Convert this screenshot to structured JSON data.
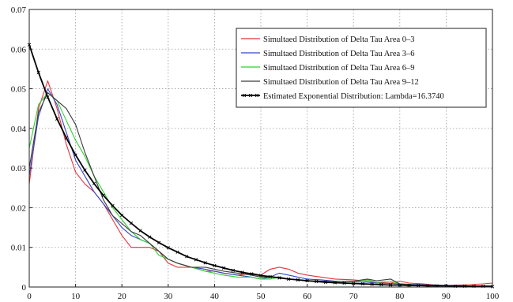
{
  "chart_data": {
    "type": "line",
    "title": "",
    "xlabel": "",
    "ylabel": "",
    "xlim": [
      0,
      100
    ],
    "ylim": [
      0,
      0.07
    ],
    "grid": true,
    "legend_position": "top-right",
    "x_ticks": [
      "0",
      "10",
      "20",
      "30",
      "40",
      "50",
      "60",
      "70",
      "80",
      "90",
      "100"
    ],
    "y_ticks": [
      "0",
      "0.01",
      "0.02",
      "0.03",
      "0.04",
      "0.05",
      "0.06",
      "0.07"
    ],
    "series": [
      {
        "name": "Simultaed Distribution of Delta Tau Area 0–3",
        "color": "#e8313a",
        "marker": "",
        "x": [
          0,
          2,
          4,
          6,
          8,
          10,
          12,
          14,
          16,
          18,
          20,
          22,
          24,
          26,
          28,
          30,
          32,
          35,
          38,
          40,
          42,
          45,
          48,
          50,
          52,
          54,
          56,
          58,
          60,
          63,
          66,
          70,
          73,
          75,
          78,
          80,
          82,
          85,
          88,
          90,
          92,
          95,
          98,
          100
        ],
        "y": [
          0.026,
          0.045,
          0.052,
          0.045,
          0.036,
          0.029,
          0.026,
          0.024,
          0.021,
          0.017,
          0.013,
          0.01,
          0.01,
          0.01,
          0.009,
          0.006,
          0.005,
          0.005,
          0.004,
          0.004,
          0.0035,
          0.003,
          0.0035,
          0.003,
          0.0045,
          0.005,
          0.0045,
          0.0035,
          0.003,
          0.0025,
          0.002,
          0.0018,
          0.0015,
          0.0012,
          0.001,
          0.0015,
          0.001,
          0.0008,
          0.0005,
          0.0004,
          0.0005,
          0.0006,
          0.0008,
          0.001
        ]
      },
      {
        "name": "Simultaed Distribution of Delta Tau Area 3–6",
        "color": "#3446c8",
        "marker": "",
        "x": [
          0,
          2,
          4,
          6,
          8,
          10,
          12,
          14,
          16,
          18,
          20,
          22,
          24,
          26,
          28,
          30,
          32,
          35,
          38,
          40,
          42,
          45,
          48,
          50,
          52,
          54,
          56,
          58,
          60,
          63,
          66,
          70,
          73,
          75,
          78,
          80,
          82,
          85,
          88,
          90,
          92,
          95,
          98,
          100
        ],
        "y": [
          0.028,
          0.043,
          0.05,
          0.046,
          0.039,
          0.032,
          0.028,
          0.024,
          0.021,
          0.018,
          0.015,
          0.013,
          0.012,
          0.011,
          0.009,
          0.007,
          0.006,
          0.005,
          0.0045,
          0.004,
          0.0035,
          0.003,
          0.0025,
          0.002,
          0.0025,
          0.0035,
          0.003,
          0.0025,
          0.002,
          0.0018,
          0.0015,
          0.0013,
          0.0012,
          0.001,
          0.0009,
          0.0008,
          0.0007,
          0.0006,
          0.0005,
          0.0004,
          0.0004,
          0.0003,
          0.0003,
          0.0003
        ]
      },
      {
        "name": "Simultaed Distribution of Delta Tau Area 6–9",
        "color": "#2fd02f",
        "marker": "",
        "x": [
          0,
          2,
          4,
          6,
          8,
          10,
          12,
          14,
          16,
          18,
          20,
          22,
          24,
          26,
          28,
          30,
          32,
          35,
          38,
          40,
          42,
          45,
          48,
          50,
          52,
          54,
          56,
          58,
          60,
          63,
          66,
          70,
          73,
          75,
          78,
          80,
          82,
          85,
          88,
          90,
          92,
          95,
          98,
          100
        ],
        "y": [
          0.035,
          0.046,
          0.049,
          0.047,
          0.042,
          0.037,
          0.033,
          0.028,
          0.024,
          0.02,
          0.017,
          0.014,
          0.012,
          0.011,
          0.008,
          0.007,
          0.006,
          0.005,
          0.004,
          0.0035,
          0.003,
          0.0025,
          0.0025,
          0.002,
          0.002,
          0.0025,
          0.002,
          0.0018,
          0.0015,
          0.0014,
          0.0015,
          0.0013,
          0.0018,
          0.0012,
          0.0015,
          0.0008,
          0.0006,
          0.0005,
          0.0004,
          0.0003,
          0.0003,
          0.0002,
          0.0002,
          0.0002
        ]
      },
      {
        "name": "Simultaed Distribution of Delta Tau Area 9–12",
        "color": "#3a3a3a",
        "marker": "",
        "x": [
          0,
          2,
          4,
          6,
          8,
          10,
          12,
          14,
          16,
          18,
          20,
          22,
          24,
          26,
          28,
          30,
          32,
          35,
          38,
          40,
          42,
          45,
          48,
          50,
          52,
          54,
          56,
          58,
          60,
          63,
          66,
          70,
          73,
          75,
          78,
          80,
          82,
          85,
          88,
          90,
          92,
          95,
          98,
          100
        ],
        "y": [
          0.03,
          0.044,
          0.049,
          0.047,
          0.045,
          0.041,
          0.034,
          0.028,
          0.022,
          0.018,
          0.016,
          0.014,
          0.013,
          0.011,
          0.009,
          0.007,
          0.006,
          0.005,
          0.005,
          0.0045,
          0.004,
          0.0035,
          0.003,
          0.0025,
          0.0025,
          0.0025,
          0.002,
          0.0018,
          0.0016,
          0.0015,
          0.0014,
          0.0015,
          0.002,
          0.0016,
          0.002,
          0.0008,
          0.0006,
          0.0005,
          0.0004,
          0.0003,
          0.0003,
          0.0003,
          0.0003,
          0.0002
        ]
      },
      {
        "name": "Estimated Exponential Distribution: Lambda=16.3740",
        "color": "#000000",
        "marker": "x",
        "x": [
          0,
          2,
          4,
          6,
          8,
          10,
          12,
          14,
          16,
          18,
          20,
          22,
          24,
          26,
          28,
          30,
          32,
          34,
          36,
          38,
          40,
          42,
          44,
          46,
          48,
          50,
          52,
          54,
          56,
          58,
          60,
          62,
          64,
          66,
          68,
          70,
          72,
          74,
          76,
          78,
          80,
          82,
          84,
          86,
          88,
          90,
          92,
          94,
          96,
          98,
          100
        ],
        "y": [
          0.0611,
          0.0541,
          0.0479,
          0.0424,
          0.0376,
          0.0333,
          0.0295,
          0.0261,
          0.0231,
          0.0205,
          0.0181,
          0.0161,
          0.0142,
          0.0126,
          0.0112,
          0.0099,
          0.0088,
          0.0077,
          0.0069,
          0.0061,
          0.0054,
          0.0048,
          0.0042,
          0.0037,
          0.0033,
          0.0029,
          0.0026,
          0.0023,
          0.002,
          0.0018,
          0.0016,
          0.0014,
          0.0012,
          0.0011,
          0.001,
          0.0009,
          0.0008,
          0.0007,
          0.0006,
          0.0005,
          0.0005,
          0.0004,
          0.0004,
          0.0003,
          0.0003,
          0.0003,
          0.0002,
          0.0002,
          0.0002,
          0.0002,
          0.0001
        ]
      }
    ]
  }
}
